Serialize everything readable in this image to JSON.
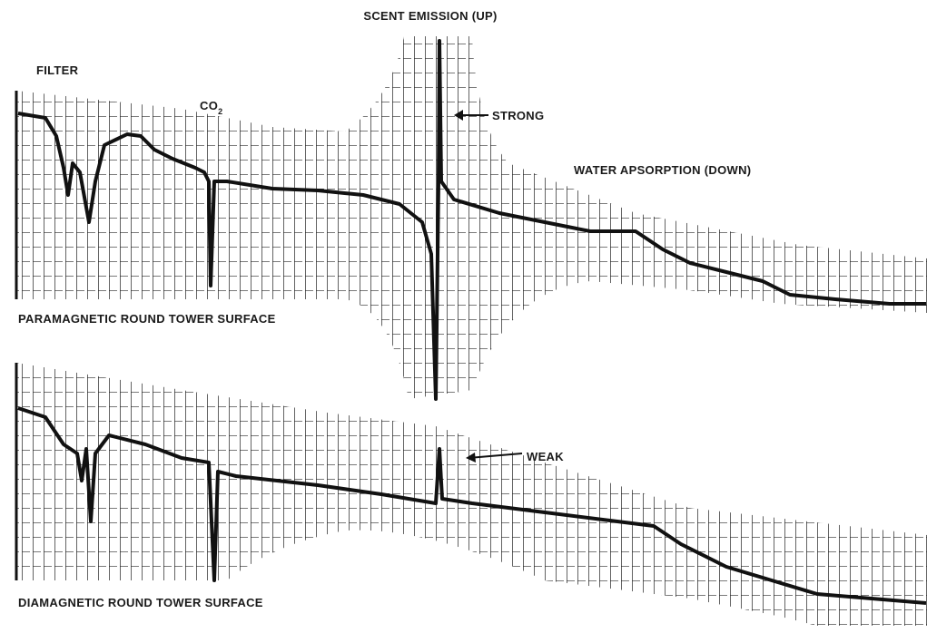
{
  "labels": {
    "scent_emission": "SCENT EMISSION (UP)",
    "filter": "FILTER",
    "co2": {
      "text": "CO",
      "subscript": "2"
    },
    "strong": "STRONG",
    "water_absorption": "WATER APSORPTION (DOWN)",
    "paramagnetic": "PARAMAGNETIC ROUND TOWER SURFACE",
    "weak": "WEAK",
    "diamagnetic": "DIAMAGNETIC ROUND TOWER SURFACE"
  }
}
